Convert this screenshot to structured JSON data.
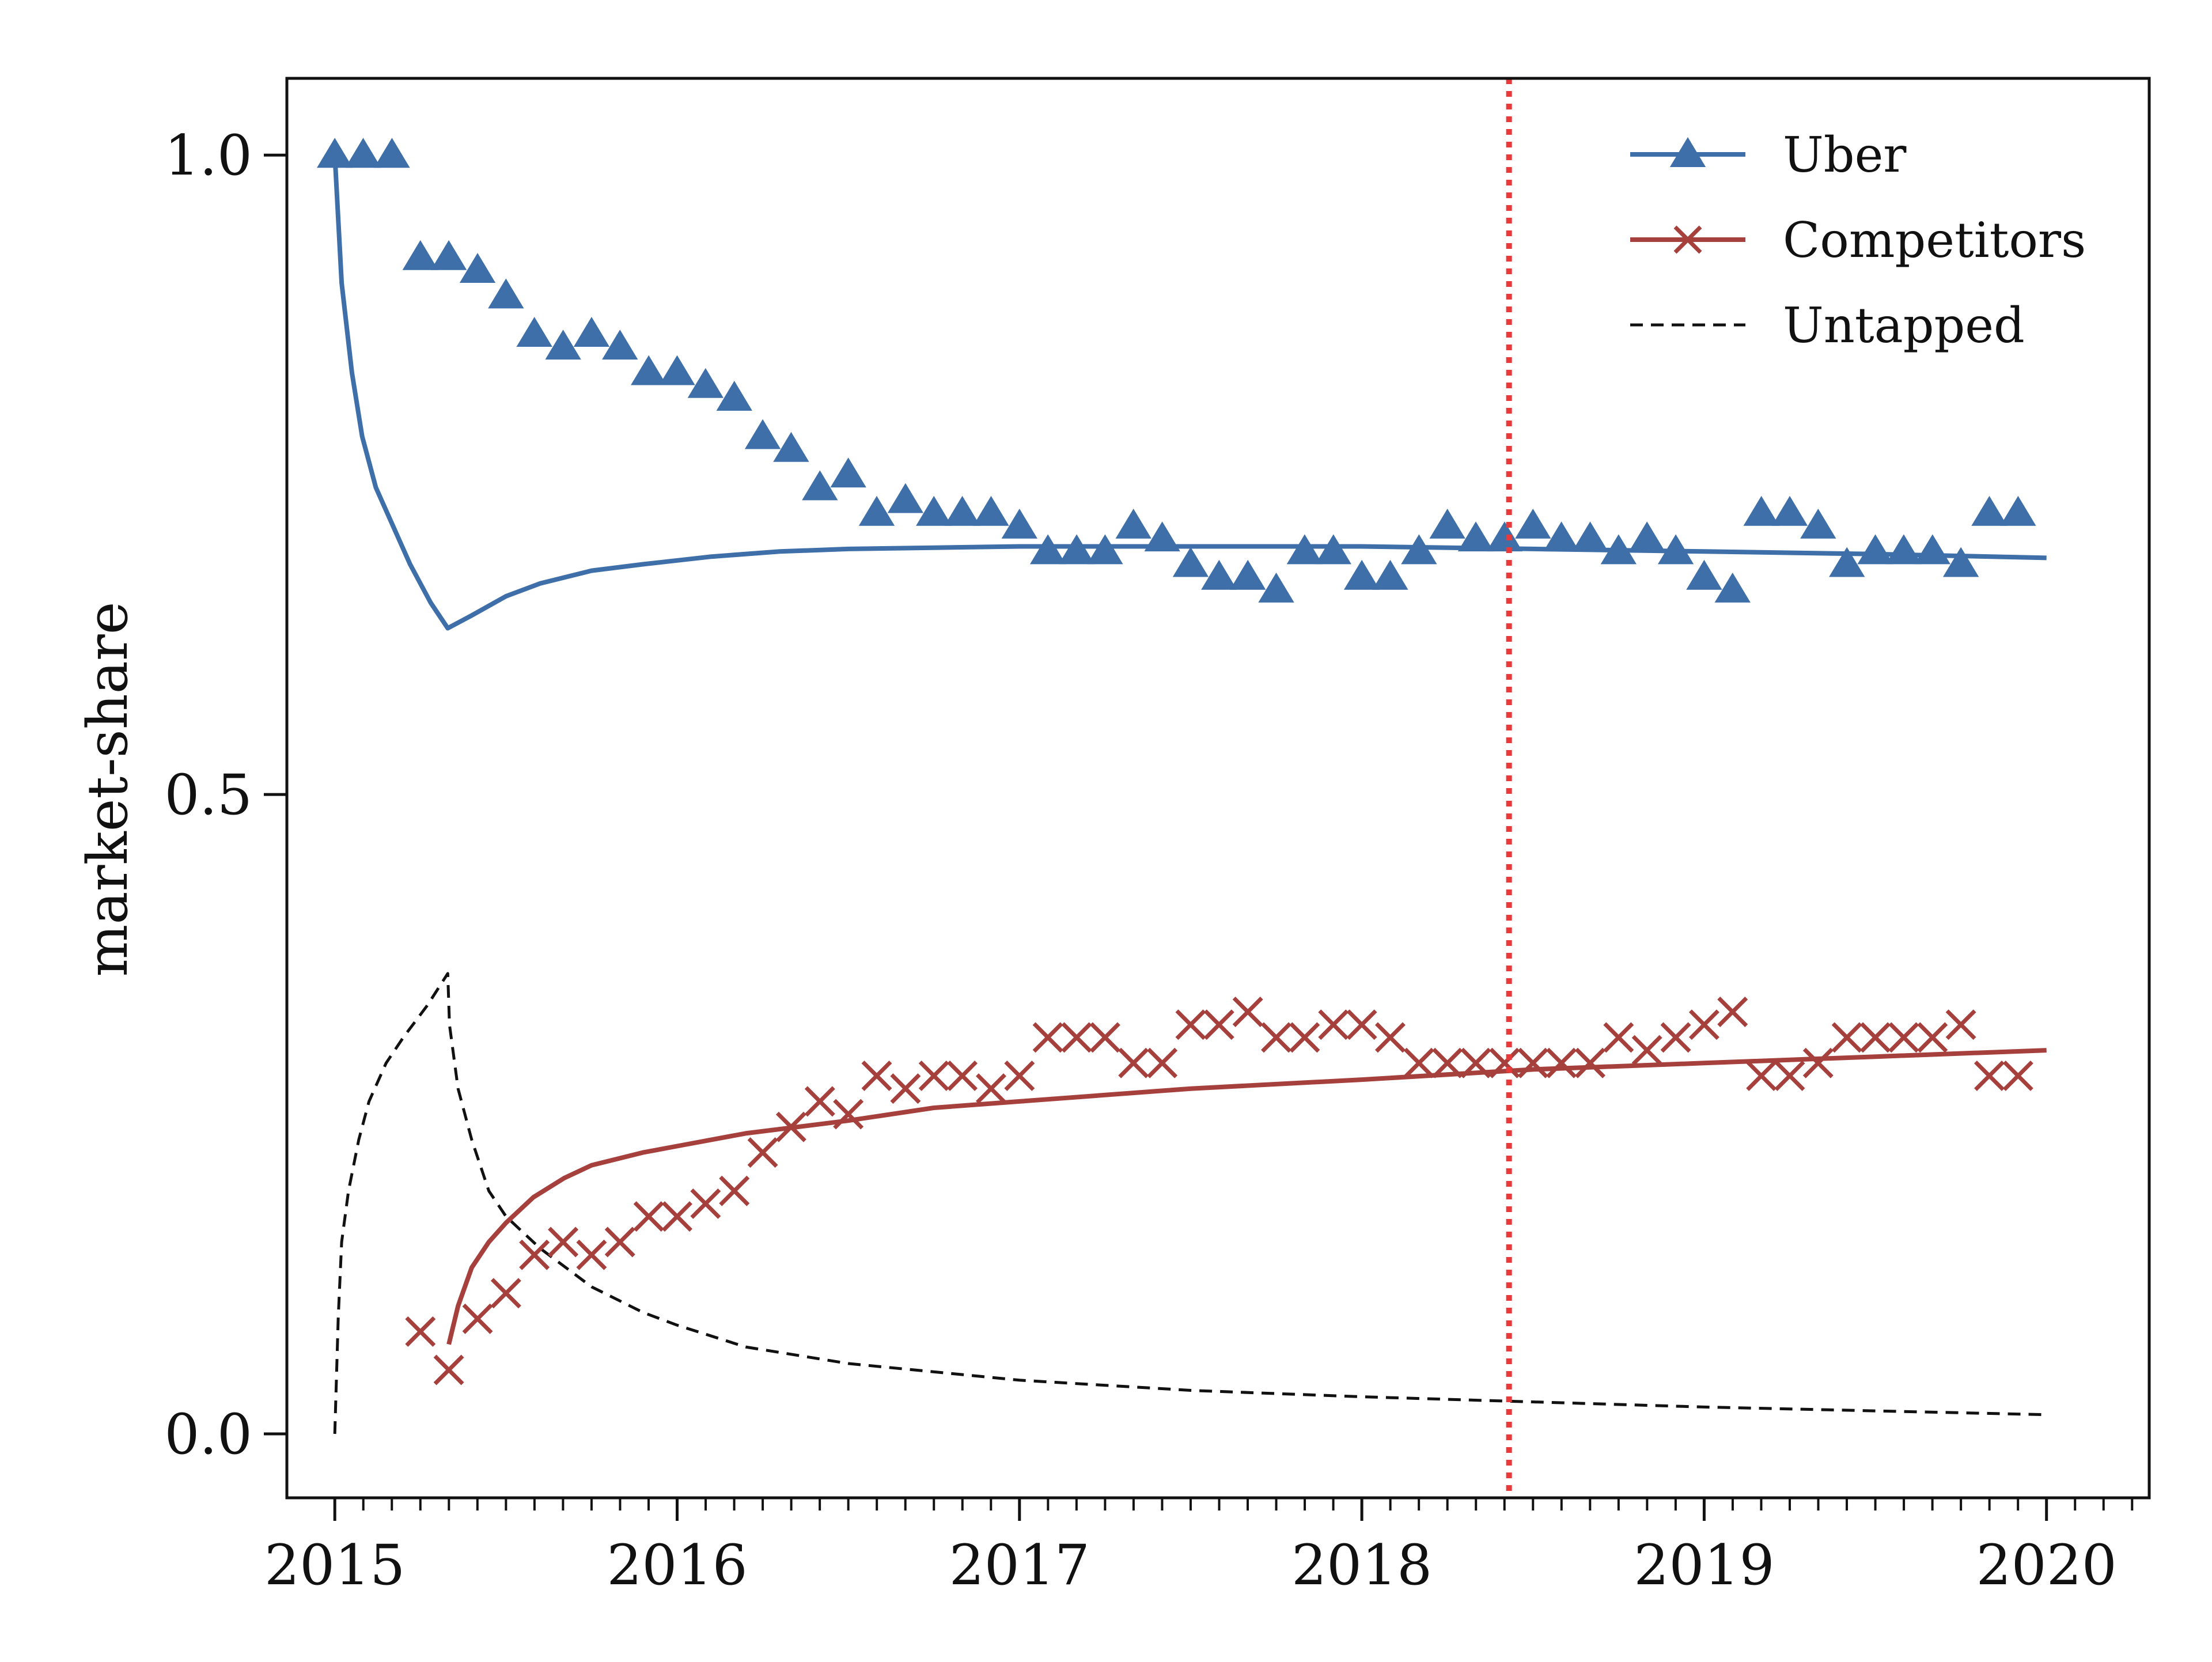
{
  "chart_data": {
    "type": "line",
    "title": "",
    "xlabel": "",
    "ylabel": "market-share",
    "xlim": [
      2014.86,
      2020.3
    ],
    "ylim": [
      -0.05,
      1.06
    ],
    "x_ticks": [
      2015,
      2016,
      2017,
      2018,
      2019,
      2020
    ],
    "x_tick_labels": [
      "2015",
      "2016",
      "2017",
      "2018",
      "2019",
      "2020"
    ],
    "y_ticks": [
      0.0,
      0.5,
      1.0
    ],
    "y_tick_labels": [
      "0.0",
      "0.5",
      "1.0"
    ],
    "grid": false,
    "legend_position": "top-right",
    "vline": {
      "x": 2018.43,
      "color": "#e8393b",
      "style": "dotted"
    },
    "colors": {
      "uber": "#3f6fa8",
      "competitors": "#a6403c",
      "untapped": "#111111"
    },
    "legend": [
      {
        "name": "Uber",
        "marker": "triangle",
        "color": "#3f6fa8",
        "line": "solid"
      },
      {
        "name": "Competitors",
        "marker": "x",
        "color": "#a6403c",
        "line": "solid"
      },
      {
        "name": "Untapped",
        "marker": "none",
        "color": "#111111",
        "line": "dashed"
      }
    ],
    "series": [
      {
        "name": "Uber",
        "kind": "markers",
        "color": "#3f6fa8",
        "x": [
          2015.0,
          2015.083,
          2015.167,
          2015.25,
          2015.333,
          2015.417,
          2015.5,
          2015.583,
          2015.667,
          2015.75,
          2015.833,
          2015.917,
          2016.0,
          2016.083,
          2016.167,
          2016.25,
          2016.333,
          2016.417,
          2016.5,
          2016.583,
          2016.667,
          2016.75,
          2016.833,
          2016.917,
          2017.0,
          2017.083,
          2017.167,
          2017.25,
          2017.333,
          2017.417,
          2017.5,
          2017.583,
          2017.667,
          2017.75,
          2017.833,
          2017.917,
          2018.0,
          2018.083,
          2018.167,
          2018.25,
          2018.333,
          2018.417,
          2018.5,
          2018.583,
          2018.667,
          2018.75,
          2018.833,
          2018.917,
          2019.0,
          2019.083,
          2019.167,
          2019.25,
          2019.333,
          2019.417,
          2019.5,
          2019.583,
          2019.667,
          2019.75,
          2019.833,
          2019.917,
          2020.0
        ],
        "y": [
          1.0,
          1.0,
          1.0,
          0.92,
          0.92,
          0.91,
          0.89,
          0.86,
          0.85,
          0.86,
          0.85,
          0.83,
          0.83,
          0.82,
          0.81,
          0.78,
          0.77,
          0.74,
          0.75,
          0.72,
          0.73,
          0.72,
          0.72,
          0.72,
          0.71,
          0.69,
          0.69,
          0.69,
          0.71,
          0.7,
          0.68,
          0.67,
          0.67,
          0.66,
          0.69,
          0.69,
          0.67,
          0.67,
          0.69,
          0.71,
          0.7,
          0.7,
          0.71,
          0.7,
          0.7,
          0.69,
          0.7,
          0.69,
          0.67,
          0.66,
          0.72,
          0.72,
          0.71,
          0.68,
          0.69,
          0.69,
          0.69,
          0.68,
          0.72,
          0.72,
          null
        ]
      },
      {
        "name": "Competitors",
        "kind": "markers",
        "color": "#a6403c",
        "x": [
          2015.25,
          2015.333,
          2015.417,
          2015.5,
          2015.583,
          2015.667,
          2015.75,
          2015.833,
          2015.917,
          2016.0,
          2016.083,
          2016.167,
          2016.25,
          2016.333,
          2016.417,
          2016.5,
          2016.583,
          2016.667,
          2016.75,
          2016.833,
          2016.917,
          2017.0,
          2017.083,
          2017.167,
          2017.25,
          2017.333,
          2017.417,
          2017.5,
          2017.583,
          2017.667,
          2017.75,
          2017.833,
          2017.917,
          2018.0,
          2018.083,
          2018.167,
          2018.25,
          2018.333,
          2018.417,
          2018.5,
          2018.583,
          2018.667,
          2018.75,
          2018.833,
          2018.917,
          2019.0,
          2019.083,
          2019.167,
          2019.25,
          2019.333,
          2019.417,
          2019.5,
          2019.583,
          2019.667,
          2019.75,
          2019.833,
          2019.917,
          2020.0
        ],
        "y": [
          0.08,
          0.05,
          0.09,
          0.11,
          0.14,
          0.15,
          0.14,
          0.15,
          0.17,
          0.17,
          0.18,
          0.19,
          0.22,
          0.24,
          0.26,
          0.25,
          0.28,
          0.27,
          0.28,
          0.28,
          0.27,
          0.28,
          0.31,
          0.31,
          0.31,
          0.29,
          0.29,
          0.32,
          0.32,
          0.33,
          0.31,
          0.31,
          0.32,
          0.32,
          0.31,
          0.29,
          0.29,
          0.29,
          0.29,
          0.29,
          0.29,
          0.29,
          0.31,
          0.3,
          0.31,
          0.32,
          0.33,
          0.28,
          0.28,
          0.29,
          0.31,
          0.31,
          0.31,
          0.31,
          0.32,
          0.28,
          0.28,
          null
        ]
      },
      {
        "name": "Uber",
        "kind": "line",
        "color": "#3f6fa8",
        "x": [
          2015.0,
          2015.02,
          2015.05,
          2015.08,
          2015.12,
          2015.17,
          2015.22,
          2015.28,
          2015.33,
          2015.4,
          2015.5,
          2015.6,
          2015.75,
          2015.9,
          2016.1,
          2016.3,
          2016.5,
          2016.75,
          2017.0,
          2017.5,
          2018.0,
          2018.5,
          2019.0,
          2019.5,
          2020.0
        ],
        "y": [
          1.0,
          0.9,
          0.83,
          0.78,
          0.74,
          0.71,
          0.68,
          0.65,
          0.63,
          0.64,
          0.655,
          0.665,
          0.675,
          0.68,
          0.686,
          0.69,
          0.692,
          0.693,
          0.694,
          0.694,
          0.694,
          0.692,
          0.69,
          0.688,
          0.685
        ]
      },
      {
        "name": "Competitors",
        "kind": "line",
        "color": "#a6403c",
        "x": [
          2015.333,
          2015.36,
          2015.4,
          2015.45,
          2015.5,
          2015.58,
          2015.67,
          2015.75,
          2015.9,
          2016.0,
          2016.2,
          2016.5,
          2016.75,
          2017.0,
          2017.5,
          2018.0,
          2018.5,
          2019.0,
          2019.5,
          2020.0
        ],
        "y": [
          0.07,
          0.1,
          0.13,
          0.15,
          0.165,
          0.185,
          0.2,
          0.21,
          0.22,
          0.225,
          0.235,
          0.245,
          0.255,
          0.26,
          0.27,
          0.277,
          0.285,
          0.29,
          0.295,
          0.3
        ]
      },
      {
        "name": "Untapped",
        "kind": "line",
        "style": "dashed",
        "color": "#111111",
        "x": [
          2015.0,
          2015.01,
          2015.02,
          2015.04,
          2015.07,
          2015.1,
          2015.15,
          2015.2,
          2015.27,
          2015.33,
          2015.335,
          2015.36,
          2015.4,
          2015.45,
          2015.5,
          2015.6,
          2015.75,
          2015.9,
          2016.0,
          2016.2,
          2016.5,
          2017.0,
          2017.5,
          2018.0,
          2018.5,
          2019.0,
          2019.5,
          2020.0
        ],
        "y": [
          0.0,
          0.09,
          0.15,
          0.19,
          0.23,
          0.26,
          0.29,
          0.31,
          0.335,
          0.36,
          0.32,
          0.27,
          0.23,
          0.19,
          0.17,
          0.145,
          0.115,
          0.095,
          0.085,
          0.068,
          0.055,
          0.042,
          0.034,
          0.029,
          0.025,
          0.021,
          0.018,
          0.015
        ]
      }
    ]
  }
}
